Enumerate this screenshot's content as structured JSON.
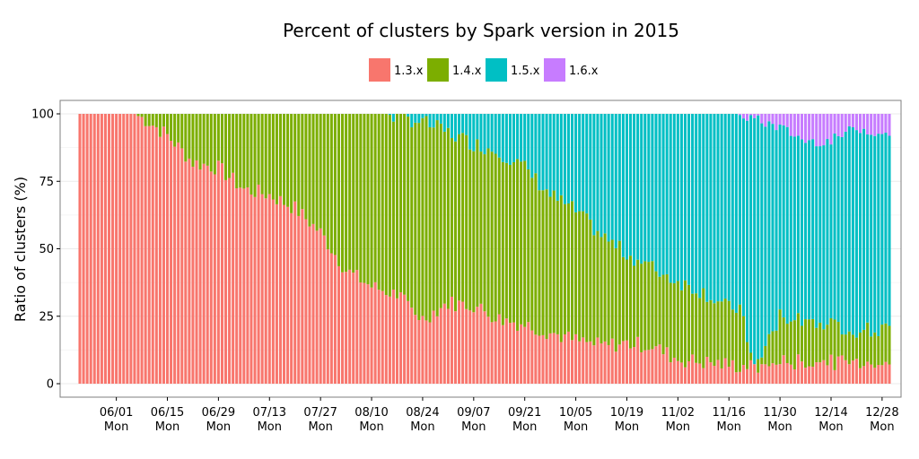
{
  "chart_data": {
    "type": "bar",
    "stacked": true,
    "title": "Percent of clusters by Spark version in 2015",
    "xlabel": "",
    "ylabel": "Ratio of clusters (%)",
    "ylim": [
      0,
      100
    ],
    "y_ticks": [
      0,
      25,
      50,
      75,
      100
    ],
    "x_start_date": "2015-05-22",
    "x_end_date": "2015-12-30",
    "x_ticks": [
      {
        "date": "06/01",
        "day": "Mon"
      },
      {
        "date": "06/15",
        "day": "Mon"
      },
      {
        "date": "06/29",
        "day": "Mon"
      },
      {
        "date": "07/13",
        "day": "Mon"
      },
      {
        "date": "07/27",
        "day": "Mon"
      },
      {
        "date": "08/10",
        "day": "Mon"
      },
      {
        "date": "08/24",
        "day": "Mon"
      },
      {
        "date": "09/07",
        "day": "Mon"
      },
      {
        "date": "09/21",
        "day": "Mon"
      },
      {
        "date": "10/05",
        "day": "Mon"
      },
      {
        "date": "10/19",
        "day": "Mon"
      },
      {
        "date": "11/02",
        "day": "Mon"
      },
      {
        "date": "11/16",
        "day": "Mon"
      },
      {
        "date": "11/30",
        "day": "Mon"
      },
      {
        "date": "12/14",
        "day": "Mon"
      },
      {
        "date": "12/28",
        "day": "Mon"
      }
    ],
    "legend_position": "top",
    "grid": true,
    "series_keypoints": {
      "note": "values in percent, keyed by [date(MM/DD), cumulative top of series]",
      "1.3.x": [
        [
          "05/22",
          100
        ],
        [
          "06/06",
          100
        ],
        [
          "06/10",
          97
        ],
        [
          "06/15",
          92
        ],
        [
          "06/22",
          82
        ],
        [
          "06/29",
          80
        ],
        [
          "07/06",
          72
        ],
        [
          "07/13",
          70
        ],
        [
          "07/20",
          65
        ],
        [
          "07/27",
          56
        ],
        [
          "08/03",
          42
        ],
        [
          "08/10",
          36
        ],
        [
          "08/17",
          33
        ],
        [
          "08/24",
          24
        ],
        [
          "08/31",
          30
        ],
        [
          "09/07",
          29
        ],
        [
          "09/14",
          24
        ],
        [
          "09/21",
          22
        ],
        [
          "09/28",
          19
        ],
        [
          "10/05",
          16
        ],
        [
          "10/12",
          14
        ],
        [
          "10/19",
          15
        ],
        [
          "10/26",
          14
        ],
        [
          "11/02",
          9
        ],
        [
          "11/09",
          8
        ],
        [
          "11/16",
          7
        ],
        [
          "11/23",
          6
        ],
        [
          "11/30",
          8
        ],
        [
          "12/07",
          8
        ],
        [
          "12/14",
          8
        ],
        [
          "12/21",
          8
        ],
        [
          "12/30",
          8
        ]
      ],
      "1.4.x": [
        [
          "05/22",
          100
        ],
        [
          "08/14",
          100
        ],
        [
          "08/17",
          99
        ],
        [
          "08/24",
          97
        ],
        [
          "08/31",
          93
        ],
        [
          "09/07",
          89
        ],
        [
          "09/14",
          86
        ],
        [
          "09/21",
          80
        ],
        [
          "09/28",
          70
        ],
        [
          "10/05",
          64
        ],
        [
          "10/12",
          55
        ],
        [
          "10/19",
          48
        ],
        [
          "10/26",
          43
        ],
        [
          "11/02",
          38
        ],
        [
          "11/09",
          34
        ],
        [
          "11/16",
          28
        ],
        [
          "11/19",
          28
        ],
        [
          "11/23",
          5
        ],
        [
          "11/30",
          25
        ],
        [
          "12/07",
          24
        ],
        [
          "12/14",
          22
        ],
        [
          "12/21",
          20
        ],
        [
          "12/30",
          20
        ]
      ],
      "1.5.x": [
        [
          "05/22",
          100
        ],
        [
          "11/18",
          100
        ],
        [
          "11/23",
          98
        ],
        [
          "11/30",
          95
        ],
        [
          "12/07",
          90
        ],
        [
          "12/14",
          90
        ],
        [
          "12/21",
          95
        ],
        [
          "12/30",
          92
        ]
      ]
    },
    "series": [
      {
        "name": "1.3.x",
        "color": "#F8766D"
      },
      {
        "name": "1.4.x",
        "color": "#7CAE00"
      },
      {
        "name": "1.5.x",
        "color": "#00BFC4"
      },
      {
        "name": "1.6.x",
        "color": "#C77CFF"
      }
    ],
    "background": "#ffffff",
    "grid_color": "#ebebeb",
    "border_color": "#7f7f7f"
  }
}
